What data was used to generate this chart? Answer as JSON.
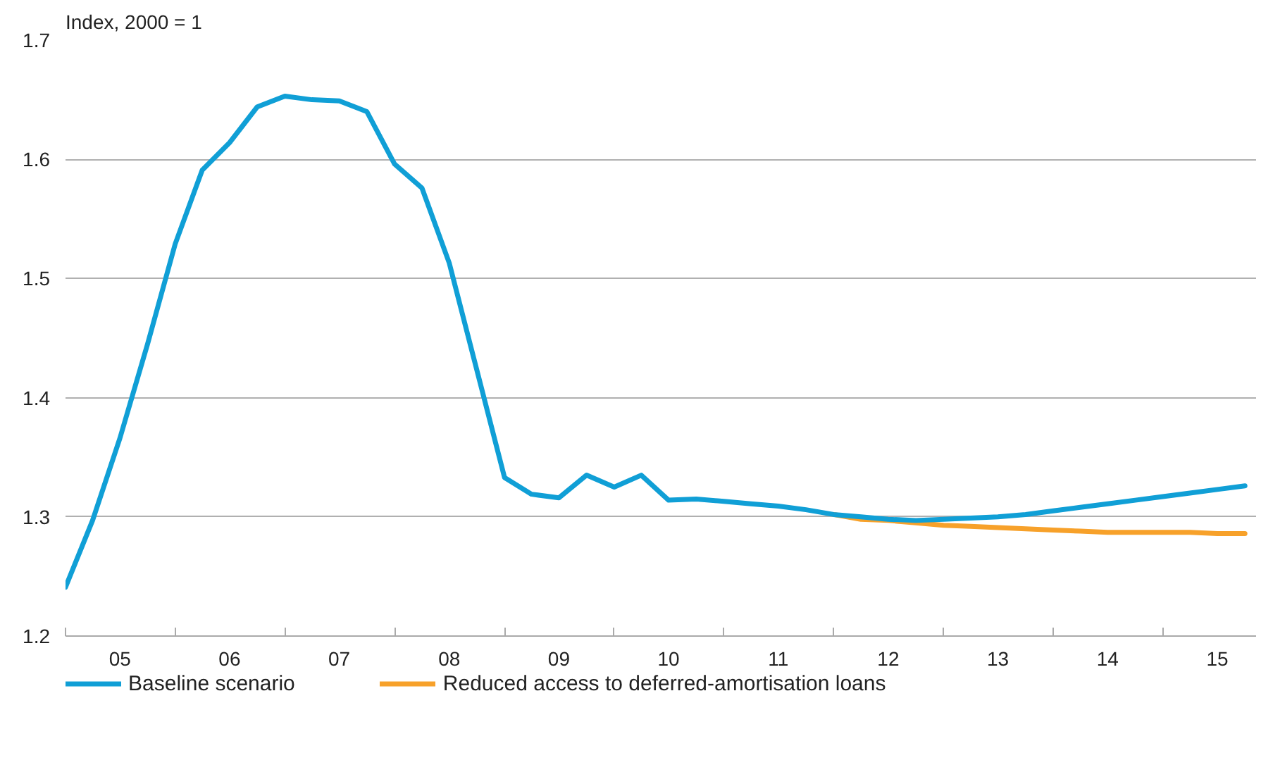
{
  "chart_data": {
    "type": "line",
    "ylabel": "Index, 2000 = 1",
    "x": [
      "2005-01",
      "2005-04",
      "2005-07",
      "2005-10",
      "2006-01",
      "2006-04",
      "2006-07",
      "2006-10",
      "2007-01",
      "2007-04",
      "2007-07",
      "2007-10",
      "2008-01",
      "2008-04",
      "2008-07",
      "2008-10",
      "2009-01",
      "2009-04",
      "2009-07",
      "2009-10",
      "2010-01",
      "2010-04",
      "2010-07",
      "2010-10",
      "2011-01",
      "2011-04",
      "2011-07",
      "2011-10",
      "2012-01",
      "2012-04",
      "2012-07",
      "2012-10",
      "2013-01",
      "2013-04",
      "2013-07",
      "2013-10",
      "2014-01",
      "2014-04",
      "2014-07",
      "2014-10",
      "2015-01",
      "2015-04",
      "2015-07",
      "2015-10"
    ],
    "series": [
      {
        "name": "Baseline scenario",
        "color": "#109fd6",
        "values": [
          1.241,
          1.297,
          1.366,
          1.445,
          1.529,
          1.591,
          1.614,
          1.644,
          1.653,
          1.65,
          1.649,
          1.64,
          1.596,
          1.576,
          1.513,
          1.423,
          1.333,
          1.319,
          1.316,
          1.335,
          1.325,
          1.335,
          1.314,
          1.315,
          1.313,
          1.311,
          1.309,
          1.306,
          1.302,
          1.3,
          1.298,
          1.297,
          1.298,
          1.299,
          1.3,
          1.302,
          1.305,
          1.308,
          1.311,
          1.314,
          1.317,
          1.32,
          1.323,
          1.326
        ]
      },
      {
        "name": "Reduced access to deferred-amortisation loans",
        "color": "#f7a12a",
        "values": [
          null,
          null,
          null,
          null,
          null,
          null,
          null,
          null,
          null,
          null,
          null,
          null,
          null,
          null,
          null,
          null,
          null,
          null,
          null,
          null,
          null,
          null,
          null,
          null,
          null,
          null,
          null,
          null,
          1.302,
          1.298,
          1.297,
          1.295,
          1.293,
          1.292,
          1.291,
          1.29,
          1.289,
          1.288,
          1.287,
          1.287,
          1.287,
          1.287,
          1.286,
          1.286
        ]
      }
    ],
    "xlim": [
      "2005-01",
      "2015-11-07"
    ],
    "xticks": [
      {
        "value": "2005-01",
        "label": null
      },
      {
        "value": "2005-07",
        "label": "05"
      },
      {
        "value": "2006-01",
        "label": null
      },
      {
        "value": "2006-07",
        "label": "06"
      },
      {
        "value": "2007-01",
        "label": null
      },
      {
        "value": "2007-07",
        "label": "07"
      },
      {
        "value": "2008-01",
        "label": null
      },
      {
        "value": "2008-07",
        "label": "08"
      },
      {
        "value": "2009-01",
        "label": null
      },
      {
        "value": "2009-07",
        "label": "09"
      },
      {
        "value": "2010-01",
        "label": null
      },
      {
        "value": "2010-07",
        "label": "10"
      },
      {
        "value": "2011-01",
        "label": null
      },
      {
        "value": "2011-07",
        "label": "11"
      },
      {
        "value": "2012-01",
        "label": null
      },
      {
        "value": "2012-07",
        "label": "12"
      },
      {
        "value": "2013-01",
        "label": null
      },
      {
        "value": "2013-07",
        "label": "13"
      },
      {
        "value": "2014-01",
        "label": null
      },
      {
        "value": "2014-07",
        "label": "14"
      },
      {
        "value": "2015-01",
        "label": null
      },
      {
        "value": "2015-07",
        "label": "15"
      }
    ],
    "ylim": [
      1.2,
      1.7
    ],
    "yticks": [
      1.2,
      1.3,
      1.4,
      1.5,
      1.6,
      1.7
    ],
    "grid": "y",
    "legend": "bottom",
    "line_style": "solid",
    "marker": "none"
  }
}
